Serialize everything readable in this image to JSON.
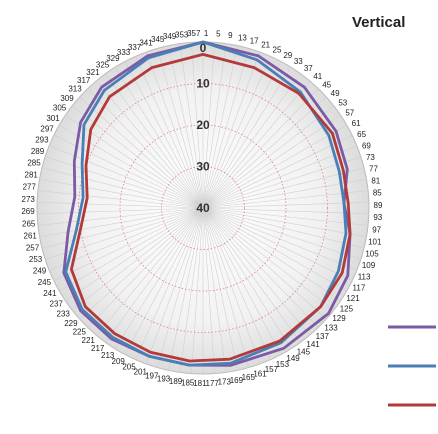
{
  "chart_data": {
    "type": "radar",
    "title": "Vertical",
    "angle_labels_step": 4,
    "angle_label_first": 1,
    "angle_label_last": 357,
    "radial_axis": {
      "reversed": true,
      "min": 0,
      "max": 40,
      "ticks": [
        "0",
        "10",
        "20",
        "30",
        "40"
      ]
    },
    "grid": true,
    "legend": {
      "position": "right",
      "entries": [
        "",
        "",
        ""
      ]
    },
    "series": [
      {
        "color": "#7b5aa6",
        "points": [
          [
            0,
            0
          ],
          [
            20,
            1
          ],
          [
            40,
            2
          ],
          [
            60,
            3
          ],
          [
            75,
            4
          ],
          [
            88,
            6
          ],
          [
            100,
            4
          ],
          [
            115,
            1.5
          ],
          [
            130,
            0.5
          ],
          [
            150,
            1
          ],
          [
            170,
            1.5
          ],
          [
            185,
            2
          ],
          [
            200,
            2
          ],
          [
            215,
            1.5
          ],
          [
            230,
            1.5
          ],
          [
            245,
            3
          ],
          [
            260,
            7
          ],
          [
            275,
            9
          ],
          [
            290,
            7
          ],
          [
            305,
            4
          ],
          [
            320,
            2
          ],
          [
            340,
            1
          ],
          [
            360,
            0
          ]
        ]
      },
      {
        "color": "#4a7fb5",
        "points": [
          [
            0,
            0
          ],
          [
            20,
            2
          ],
          [
            40,
            3.5
          ],
          [
            60,
            5
          ],
          [
            75,
            6
          ],
          [
            88,
            6
          ],
          [
            100,
            5
          ],
          [
            115,
            4
          ],
          [
            130,
            3
          ],
          [
            150,
            2.5
          ],
          [
            170,
            2
          ],
          [
            185,
            2
          ],
          [
            200,
            2
          ],
          [
            215,
            2
          ],
          [
            230,
            2
          ],
          [
            245,
            3.5
          ],
          [
            260,
            9
          ],
          [
            275,
            11
          ],
          [
            290,
            9
          ],
          [
            305,
            5
          ],
          [
            320,
            3
          ],
          [
            340,
            1.5
          ],
          [
            360,
            0
          ]
        ]
      },
      {
        "color": "#b33a3a",
        "points": [
          [
            0,
            3
          ],
          [
            20,
            4
          ],
          [
            40,
            4
          ],
          [
            60,
            4
          ],
          [
            75,
            5
          ],
          [
            88,
            5
          ],
          [
            100,
            4
          ],
          [
            115,
            3
          ],
          [
            130,
            3
          ],
          [
            150,
            3
          ],
          [
            170,
            3
          ],
          [
            185,
            3
          ],
          [
            200,
            3
          ],
          [
            215,
            3
          ],
          [
            230,
            3
          ],
          [
            245,
            5
          ],
          [
            260,
            10
          ],
          [
            275,
            12
          ],
          [
            290,
            10
          ],
          [
            305,
            7
          ],
          [
            320,
            5
          ],
          [
            340,
            4
          ],
          [
            360,
            3
          ]
        ]
      }
    ]
  }
}
